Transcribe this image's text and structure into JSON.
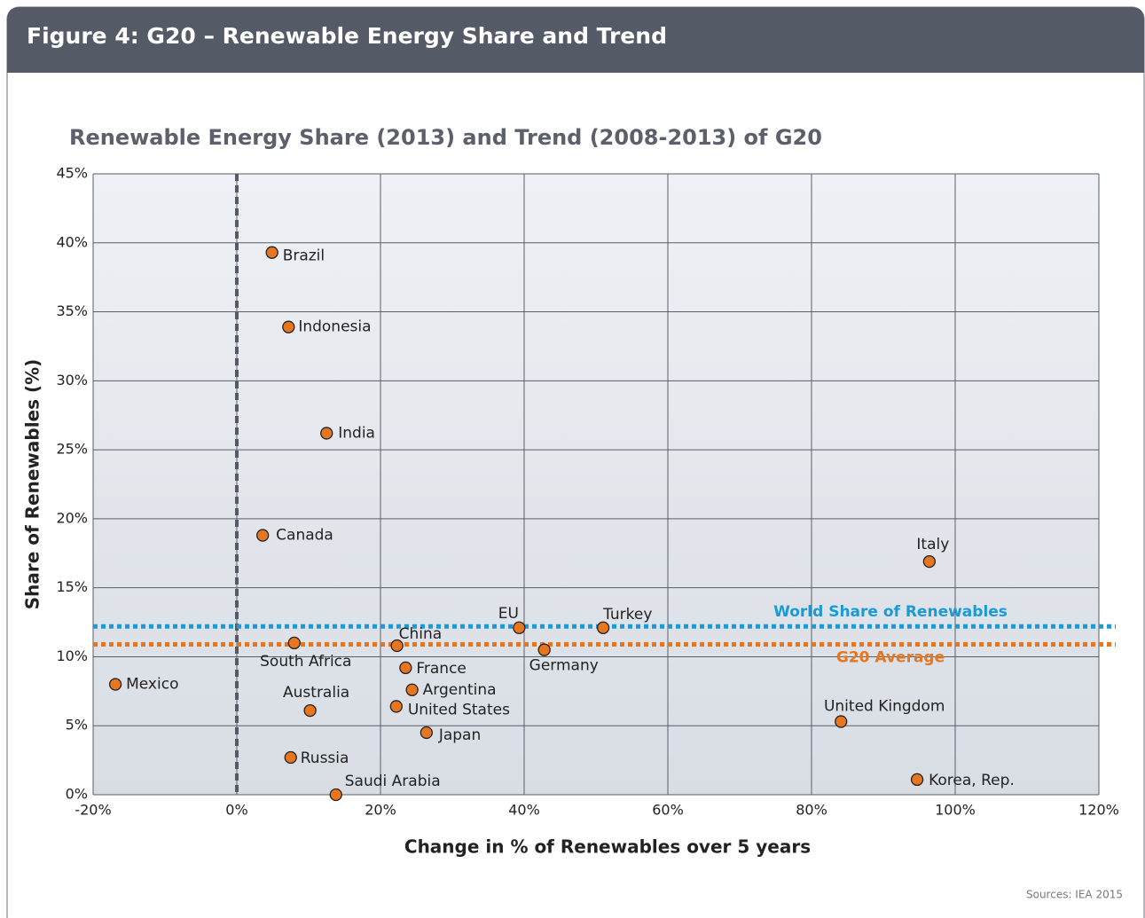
{
  "header": "Figure 4: G20 – Renewable Energy Share and Trend",
  "source": "Sources: IEA 2015",
  "chart_data": {
    "type": "scatter",
    "title": "Renewable Energy Share (2013) and Trend (2008-2013) of G20",
    "x_label": "Change in % of Renewables over 5 years",
    "y_label": "Share of Renewables (%)",
    "color": "#e8761e",
    "points": [
      {
        "label": "Brazil",
        "x": 4.9,
        "y": 39.3
      },
      {
        "label": "Indonesia",
        "x": 7.2,
        "y": 33.9
      },
      {
        "label": "India",
        "x": 12.5,
        "y": 26.2
      },
      {
        "label": "Canada",
        "x": 3.6,
        "y": 18.8
      },
      {
        "label": "Italy",
        "x": 96.4,
        "y": 16.9
      },
      {
        "label": "EU",
        "x": 39.3,
        "y": 12.1
      },
      {
        "label": "Turkey",
        "x": 51.0,
        "y": 12.1
      },
      {
        "label": "China",
        "x": 22.3,
        "y": 10.8
      },
      {
        "label": "Germany",
        "x": 42.8,
        "y": 10.5
      },
      {
        "label": "South Africa",
        "x": 8.0,
        "y": 11.0
      },
      {
        "label": "France",
        "x": 23.5,
        "y": 9.2
      },
      {
        "label": "Mexico",
        "x": -16.9,
        "y": 8.0
      },
      {
        "label": "Argentina",
        "x": 24.4,
        "y": 7.6
      },
      {
        "label": "United States",
        "x": 22.2,
        "y": 6.4
      },
      {
        "label": "Australia",
        "x": 10.2,
        "y": 6.1
      },
      {
        "label": "United Kingdom",
        "x": 84.1,
        "y": 5.3
      },
      {
        "label": "Japan",
        "x": 26.4,
        "y": 4.5
      },
      {
        "label": "Russia",
        "x": 7.5,
        "y": 2.7
      },
      {
        "label": "Korea, Rep.",
        "x": 94.7,
        "y": 1.1
      },
      {
        "label": "Saudi Arabia",
        "x": 13.8,
        "y": 0.0
      }
    ],
    "reference_lines": [
      {
        "label": "World Share of Renewables",
        "value": 12.2,
        "color": "#1a9ad6"
      },
      {
        "label": "G20 Average",
        "value": 10.9,
        "color": "#e8761e"
      }
    ],
    "xlim": [
      -20,
      120
    ],
    "xticks": [
      {
        "value": -20,
        "label": "-20%"
      },
      {
        "value": 0,
        "label": "0%"
      },
      {
        "value": 20,
        "label": "20%"
      },
      {
        "value": 40,
        "label": "40%"
      },
      {
        "value": 60,
        "label": "60%"
      },
      {
        "value": 80,
        "label": "80%"
      },
      {
        "value": 100,
        "label": "100%"
      },
      {
        "value": 120,
        "label": "120%"
      }
    ],
    "ylim": [
      0,
      45
    ],
    "yticks": [
      {
        "value": 0,
        "label": "0%"
      },
      {
        "value": 5,
        "label": "5%"
      },
      {
        "value": 10,
        "label": "10%"
      },
      {
        "value": 15,
        "label": "15%"
      },
      {
        "value": 20,
        "label": "20%"
      },
      {
        "value": 25,
        "label": "25%"
      },
      {
        "value": 30,
        "label": "30%"
      },
      {
        "value": 35,
        "label": "35%"
      },
      {
        "value": 40,
        "label": "40%"
      },
      {
        "value": 45,
        "label": "45%"
      }
    ],
    "grid": true
  }
}
